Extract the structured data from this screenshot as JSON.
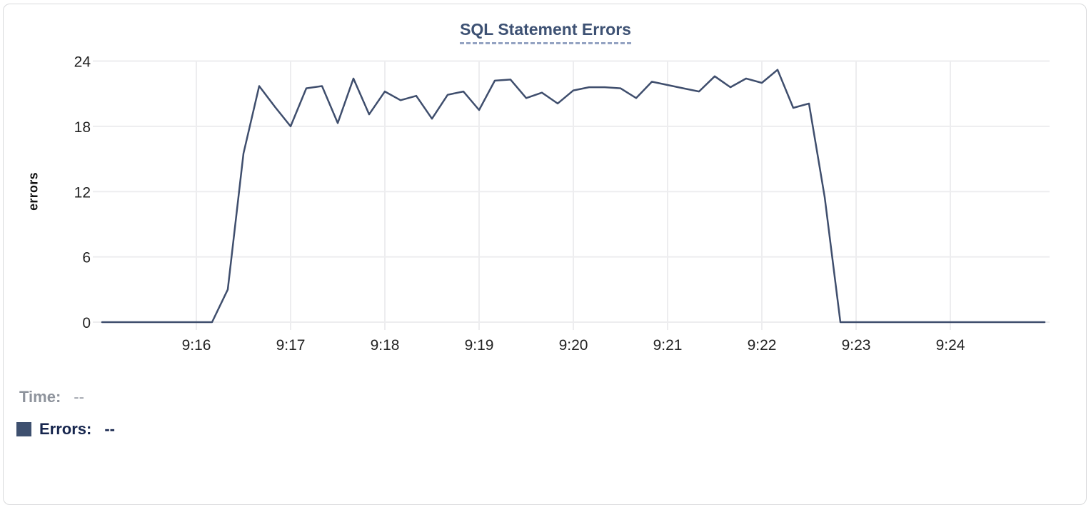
{
  "card": {
    "kind": "chart-panel"
  },
  "chart_data": {
    "type": "line",
    "title": "SQL Statement Errors",
    "xlabel": "",
    "ylabel": "errors",
    "ylim": [
      0,
      24
    ],
    "y_ticks": [
      0,
      6,
      12,
      18,
      24
    ],
    "x_ticks": [
      "9:16",
      "9:17",
      "9:18",
      "9:19",
      "9:20",
      "9:21",
      "9:22",
      "9:23",
      "9:24"
    ],
    "x_start": "9:15:00",
    "x_end": "9:25:00",
    "sample_interval_seconds": 10,
    "grid": true,
    "legend_position": "bottom-left",
    "series": [
      {
        "name": "Errors",
        "color": "#3f4e6d",
        "times": [
          "9:15:00",
          "9:15:10",
          "9:15:20",
          "9:15:30",
          "9:15:40",
          "9:15:50",
          "9:16:00",
          "9:16:10",
          "9:16:20",
          "9:16:30",
          "9:16:40",
          "9:16:50",
          "9:17:00",
          "9:17:10",
          "9:17:20",
          "9:17:30",
          "9:17:40",
          "9:17:50",
          "9:18:00",
          "9:18:10",
          "9:18:20",
          "9:18:30",
          "9:18:40",
          "9:18:50",
          "9:19:00",
          "9:19:10",
          "9:19:20",
          "9:19:30",
          "9:19:40",
          "9:19:50",
          "9:20:00",
          "9:20:10",
          "9:20:20",
          "9:20:30",
          "9:20:40",
          "9:20:50",
          "9:21:00",
          "9:21:10",
          "9:21:20",
          "9:21:30",
          "9:21:40",
          "9:21:50",
          "9:22:00",
          "9:22:10",
          "9:22:20",
          "9:22:30",
          "9:22:40",
          "9:22:50",
          "9:23:00",
          "9:23:10",
          "9:23:20",
          "9:23:30",
          "9:23:40",
          "9:23:50",
          "9:24:00",
          "9:24:10",
          "9:24:20",
          "9:24:30",
          "9:24:40",
          "9:24:50",
          "9:25:00"
        ],
        "values": [
          0,
          0,
          0,
          0,
          0,
          0,
          0,
          0,
          3,
          15.5,
          21.7,
          19.8,
          18,
          21.5,
          21.7,
          18.3,
          22.4,
          19.1,
          21.2,
          20.4,
          20.8,
          18.7,
          20.9,
          21.2,
          19.5,
          22.2,
          22.3,
          20.6,
          21.1,
          20.1,
          21.3,
          21.6,
          21.6,
          21.5,
          20.6,
          22.1,
          21.8,
          21.5,
          21.2,
          22.6,
          21.6,
          22.4,
          22,
          23.2,
          19.7,
          20.1,
          11.5,
          0,
          0,
          0,
          0,
          0,
          0,
          0,
          0,
          0,
          0,
          0,
          0,
          0,
          0
        ]
      }
    ]
  },
  "legend": {
    "time_label": "Time:",
    "time_value": "--",
    "errors_label": "Errors:",
    "errors_value": "--",
    "swatch_color": "#3e506f"
  },
  "colors": {
    "line": "#3f4e6d",
    "title": "#3d5173",
    "gridline": "#ededef",
    "tick_text": "#222222",
    "time_label": "#8e939c",
    "errors_label": "#17264e",
    "card_border": "#d9dadc"
  }
}
